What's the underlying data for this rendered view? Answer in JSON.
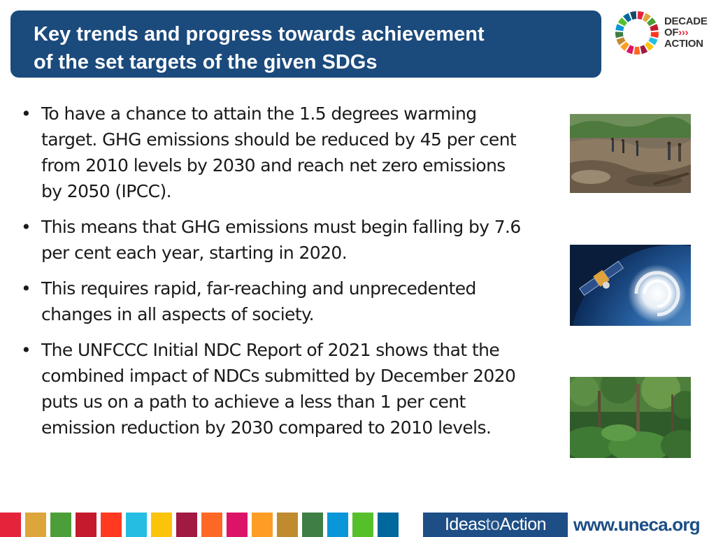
{
  "title": {
    "line1": "Key trends and progress towards achievement",
    "line2": "of the set targets of the given SDGs"
  },
  "logo": {
    "name": "sdg-decade-of-action-logo",
    "line1": "DECADE",
    "line2": "OF",
    "arrows": "›››",
    "line3": "ACTION"
  },
  "bullets": [
    {
      "text": "To have a chance to attain the 1.5 degrees warming target. GHG emissions should be reduced by 45 per cent from 2010 levels by 2030 and reach net zero emissions by 2050 (IPCC)."
    },
    {
      "text": "This means that GHG emissions must begin falling by 7.6 per cent each year, starting in 2020."
    },
    {
      "text": "This requires rapid, far-reaching and unprecedented changes in all aspects of society."
    },
    {
      "text": "The UNFCCC Initial NDC Report of 2021 shows that the combined impact of NDCs submitted by December 2020 puts us on a path to achieve a less than 1 per cent emission reduction by 2030 compared to 2010 levels."
    }
  ],
  "photos": [
    {
      "name": "flood-damage-photo"
    },
    {
      "name": "satellite-hurricane-photo"
    },
    {
      "name": "rainforest-photo"
    }
  ],
  "footer": {
    "ideas_part1": "Ideas",
    "ideas_part2": "to",
    "ideas_part3": "Action",
    "website": "www.uneca.org",
    "sdg_colors": [
      "#e5243b",
      "#dda63a",
      "#4c9f38",
      "#c5192d",
      "#ff3a21",
      "#26bde2",
      "#fcc30b",
      "#a21942",
      "#fd6925",
      "#dd1367",
      "#fd9d24",
      "#bf8b2e",
      "#3f7e44",
      "#0a97d9",
      "#56c02b",
      "#00689d",
      "#19486a"
    ]
  }
}
